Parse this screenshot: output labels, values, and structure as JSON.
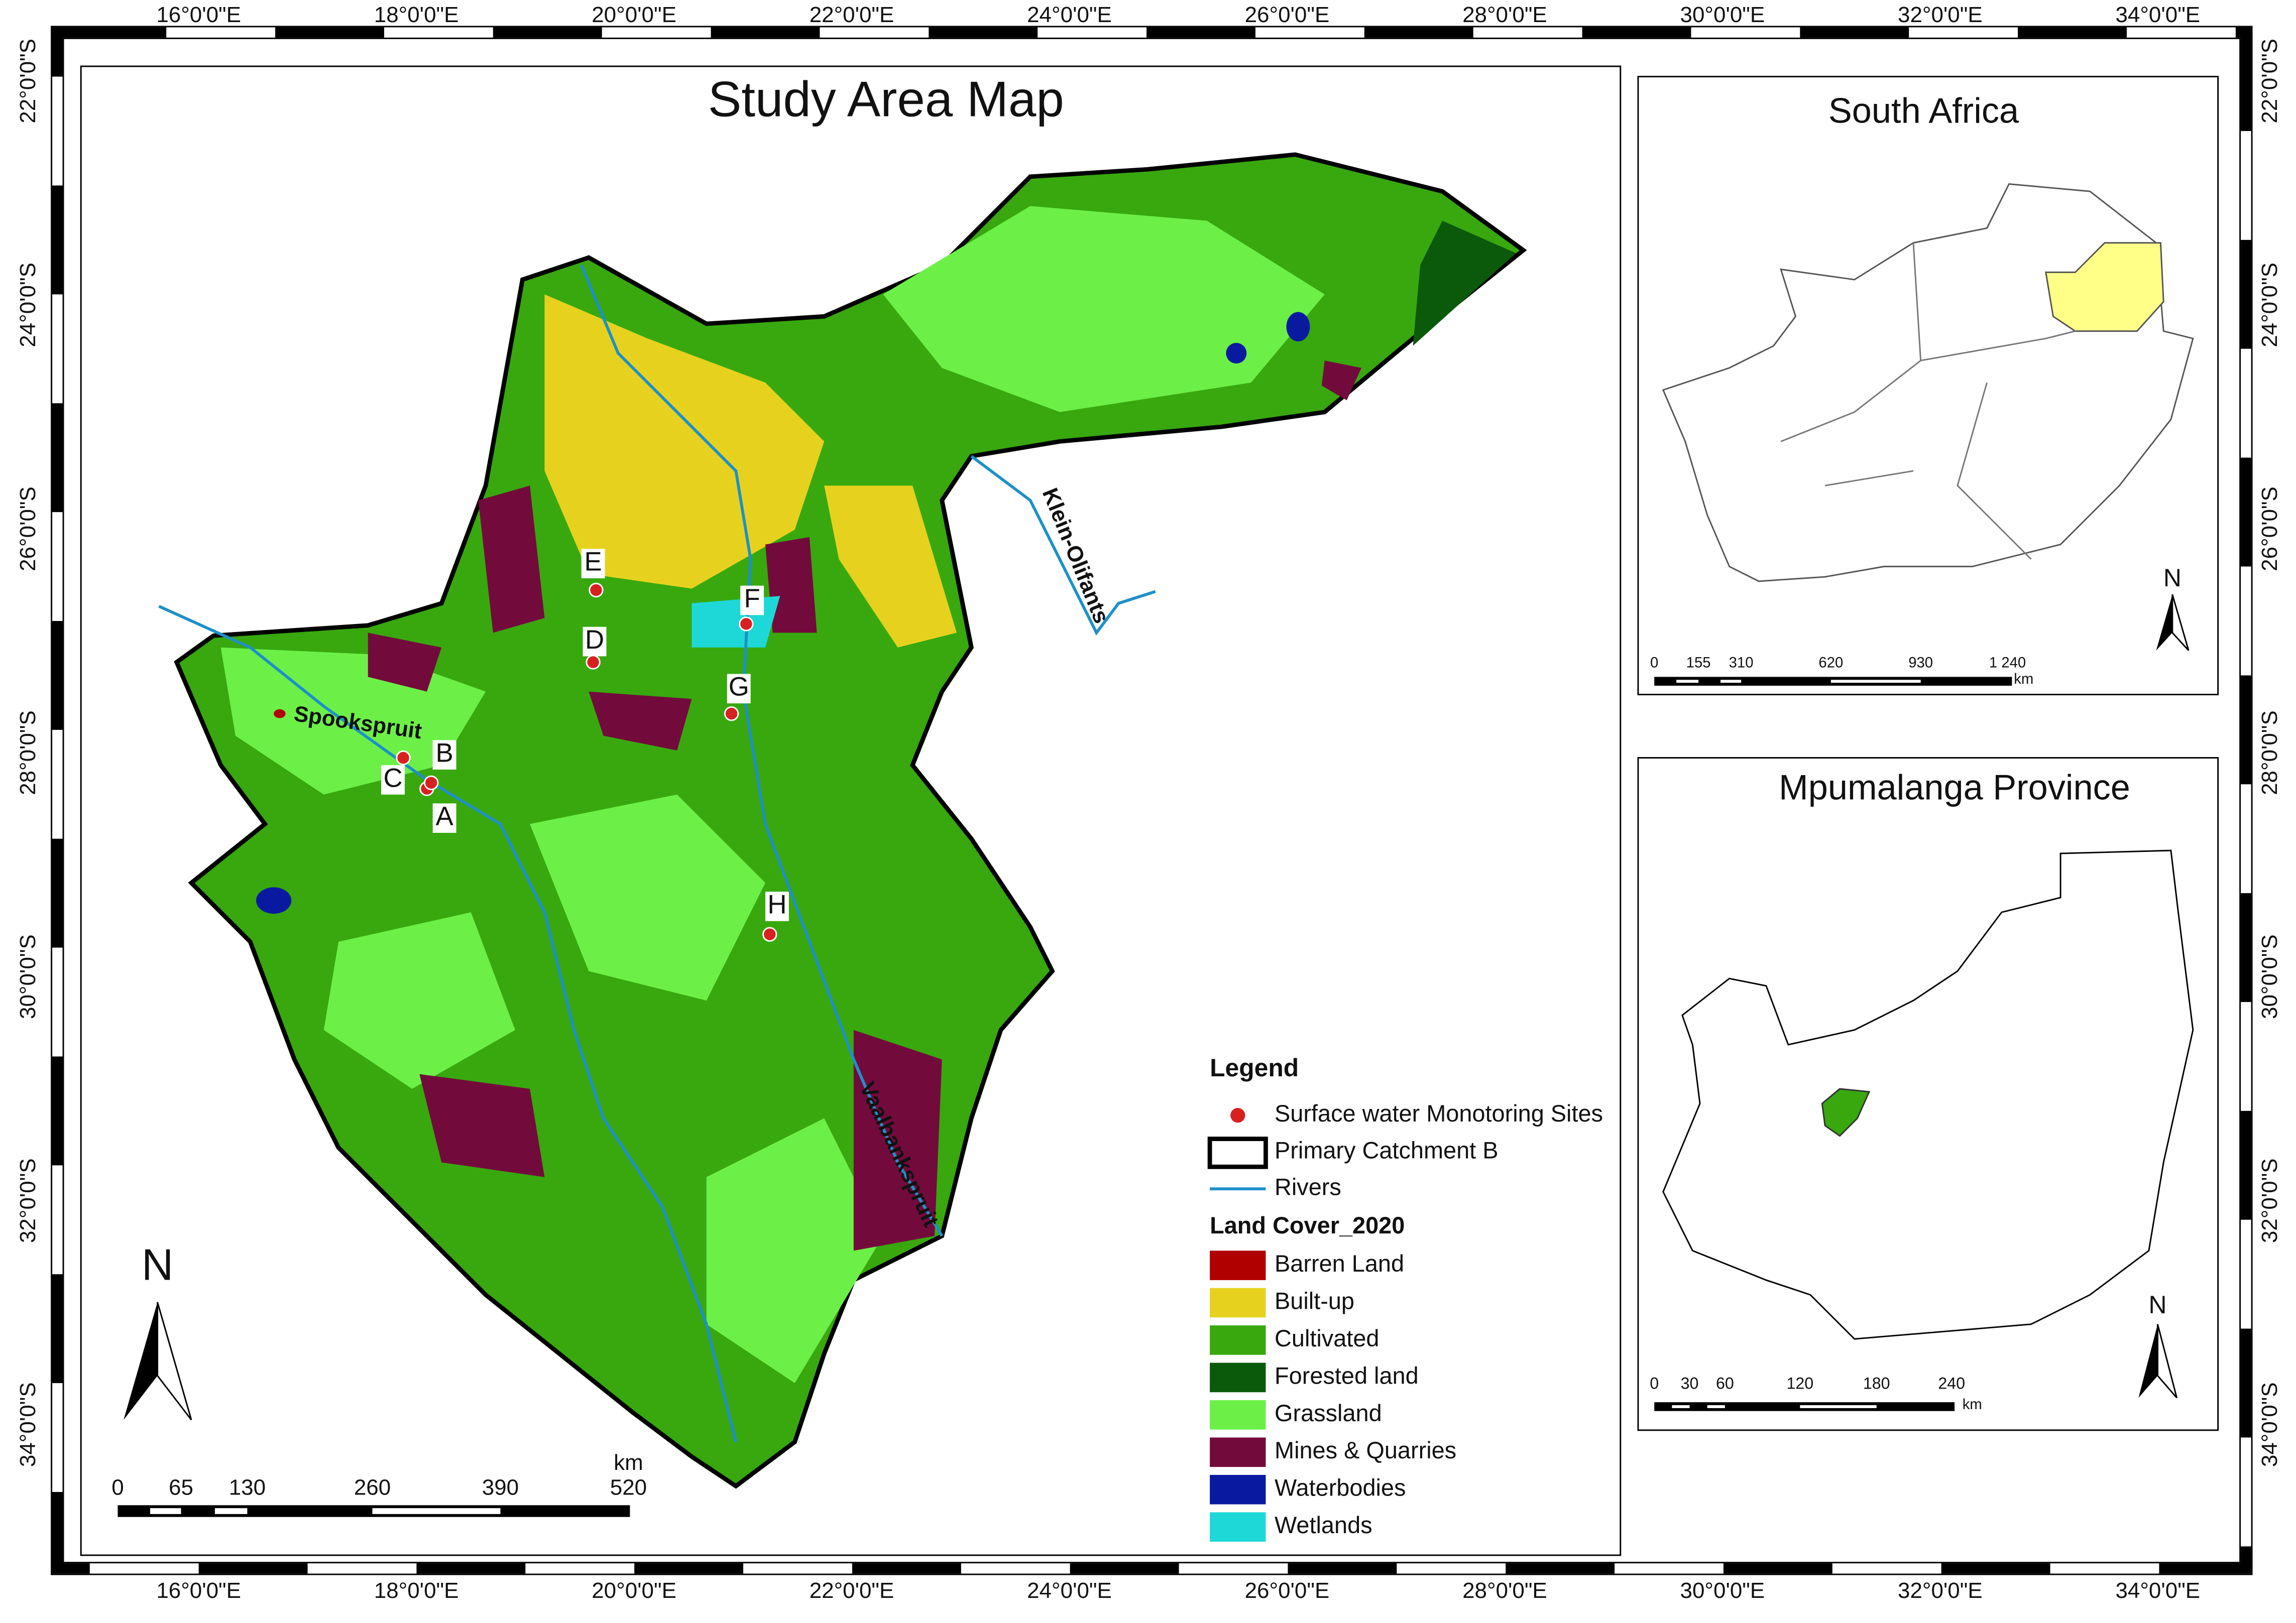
{
  "title": "Study Area Map",
  "longitude_labels": [
    "16°0'0\"E",
    "18°0'0\"E",
    "20°0'0\"E",
    "22°0'0\"E",
    "24°0'0\"E",
    "26°0'0\"E",
    "28°0'0\"E",
    "30°0'0\"E",
    "32°0'0\"E",
    "34°0'0\"E"
  ],
  "latitude_labels": [
    "22°0'0\"S",
    "24°0'0\"S",
    "26°0'0\"S",
    "28°0'0\"S",
    "30°0'0\"S",
    "32°0'0\"S",
    "34°0'0\"S"
  ],
  "sites": [
    "A",
    "B",
    "C",
    "D",
    "E",
    "F",
    "G",
    "H"
  ],
  "rivers": [
    "Spookspruit",
    "Klein-Olifants",
    "Vaalbankspruit"
  ],
  "north_label": "N",
  "scale": {
    "unit": "km",
    "ticks": [
      "0",
      "65",
      "130",
      "260",
      "390",
      "520"
    ]
  },
  "legend": {
    "title": "Legend",
    "items": [
      "Surface water Monotoring Sites",
      "Primary Catchment B",
      "Rivers"
    ],
    "land_cover_title": "Land Cover_2020",
    "classes": [
      {
        "name": "Barren Land",
        "color": "#b00000"
      },
      {
        "name": "Built-up",
        "color": "#e6d21e"
      },
      {
        "name": "Cultivated",
        "color": "#38a80e"
      },
      {
        "name": "Forested land",
        "color": "#0b5a0b"
      },
      {
        "name": "Grassland",
        "color": "#6cf048"
      },
      {
        "name": "Mines & Quarries",
        "color": "#730a3c"
      },
      {
        "name": "Waterbodies",
        "color": "#0a1aa0"
      },
      {
        "name": "Wetlands",
        "color": "#1ed8d8"
      }
    ]
  },
  "insets": [
    {
      "title": "South Africa",
      "north": "N",
      "unit": "km",
      "scale_ticks": [
        "0",
        "155",
        "310",
        "620",
        "930",
        "1 240"
      ]
    },
    {
      "title": "Mpumalanga Province",
      "north": "N",
      "unit": "km",
      "scale_ticks": [
        "0",
        "30",
        "60",
        "120",
        "180",
        "240"
      ]
    }
  ]
}
